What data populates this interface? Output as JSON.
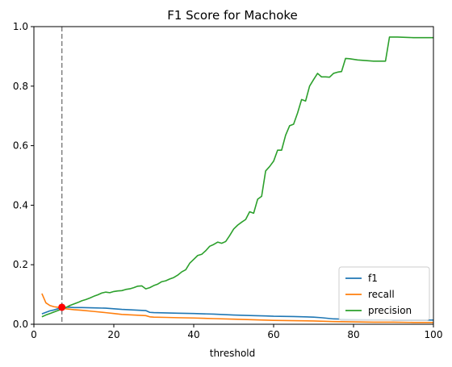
{
  "chart_data": {
    "type": "line",
    "title": "F1 Score for Machoke",
    "xlabel": "threshold",
    "ylabel": "",
    "xlim": [
      0,
      100
    ],
    "ylim": [
      0,
      1.0
    ],
    "xticks": [
      0,
      20,
      40,
      60,
      80,
      100
    ],
    "xtick_labels": [
      "0",
      "20",
      "40",
      "60",
      "80",
      "100"
    ],
    "yticks": [
      0,
      0.2,
      0.4,
      0.6,
      0.8,
      1.0
    ],
    "ytick_labels": [
      "0.0",
      "0.2",
      "0.4",
      "0.6",
      "0.8",
      "1.0"
    ],
    "grid": false,
    "legend_position": "lower-right",
    "vline": {
      "x": 7,
      "style": "dashed",
      "color": "#808080"
    },
    "marker": {
      "x": 7,
      "y": 0.057,
      "color": "#ff0000"
    },
    "series": [
      {
        "name": "f1",
        "color": "#1f77b4",
        "x": [
          2,
          3,
          4,
          5,
          6,
          7,
          8,
          9,
          10,
          12,
          15,
          18,
          20,
          22,
          25,
          28,
          29,
          30,
          33,
          36,
          40,
          45,
          50,
          55,
          58,
          60,
          65,
          70,
          72,
          75,
          80,
          85,
          88,
          90,
          95,
          100
        ],
        "y": [
          0.035,
          0.04,
          0.045,
          0.048,
          0.052,
          0.056,
          0.057,
          0.057,
          0.056,
          0.056,
          0.055,
          0.054,
          0.052,
          0.05,
          0.048,
          0.046,
          0.04,
          0.039,
          0.038,
          0.037,
          0.036,
          0.034,
          0.031,
          0.029,
          0.028,
          0.027,
          0.026,
          0.024,
          0.022,
          0.018,
          0.016,
          0.015,
          0.015,
          0.014,
          0.014,
          0.014
        ]
      },
      {
        "name": "recall",
        "color": "#ff7f0e",
        "x": [
          2,
          3,
          4,
          5,
          6,
          7,
          8,
          10,
          12,
          15,
          18,
          20,
          22,
          25,
          28,
          29,
          30,
          33,
          36,
          40,
          45,
          50,
          55,
          60,
          65,
          70,
          75,
          80,
          85,
          90,
          95,
          100
        ],
        "y": [
          0.103,
          0.072,
          0.063,
          0.059,
          0.057,
          0.055,
          0.052,
          0.049,
          0.047,
          0.043,
          0.039,
          0.036,
          0.033,
          0.031,
          0.029,
          0.025,
          0.024,
          0.023,
          0.022,
          0.021,
          0.019,
          0.017,
          0.015,
          0.013,
          0.012,
          0.011,
          0.009,
          0.008,
          0.007,
          0.007,
          0.006,
          0.006
        ]
      },
      {
        "name": "precision",
        "color": "#2ca02c",
        "x": [
          2,
          3,
          4,
          5,
          6,
          7,
          8,
          9,
          10,
          11,
          12,
          13,
          14,
          15,
          16,
          17,
          18,
          19,
          20,
          21,
          22,
          23,
          24,
          25,
          26,
          27,
          28,
          29,
          30,
          31,
          32,
          33,
          34,
          35,
          36,
          37,
          38,
          39,
          40,
          41,
          42,
          43,
          44,
          45,
          46,
          47,
          48,
          49,
          50,
          51,
          52,
          53,
          54,
          55,
          56,
          57,
          58,
          59,
          60,
          61,
          62,
          63,
          64,
          65,
          66,
          67,
          68,
          69,
          70,
          71,
          72,
          73,
          74,
          75,
          76,
          77,
          78,
          79,
          80,
          81,
          85,
          88,
          89,
          91,
          95,
          100
        ],
        "y": [
          0.025,
          0.031,
          0.036,
          0.041,
          0.046,
          0.051,
          0.056,
          0.063,
          0.068,
          0.073,
          0.079,
          0.083,
          0.088,
          0.094,
          0.099,
          0.105,
          0.108,
          0.106,
          0.11,
          0.112,
          0.113,
          0.117,
          0.119,
          0.123,
          0.128,
          0.129,
          0.119,
          0.123,
          0.13,
          0.135,
          0.143,
          0.146,
          0.152,
          0.157,
          0.165,
          0.176,
          0.183,
          0.205,
          0.218,
          0.231,
          0.235,
          0.247,
          0.262,
          0.268,
          0.276,
          0.272,
          0.278,
          0.298,
          0.32,
          0.333,
          0.343,
          0.352,
          0.378,
          0.373,
          0.42,
          0.43,
          0.515,
          0.53,
          0.548,
          0.585,
          0.585,
          0.635,
          0.667,
          0.672,
          0.71,
          0.755,
          0.75,
          0.8,
          0.822,
          0.843,
          0.831,
          0.831,
          0.83,
          0.843,
          0.847,
          0.849,
          0.893,
          0.892,
          0.89,
          0.888,
          0.884,
          0.884,
          0.965,
          0.965,
          0.963,
          0.963
        ]
      }
    ]
  }
}
